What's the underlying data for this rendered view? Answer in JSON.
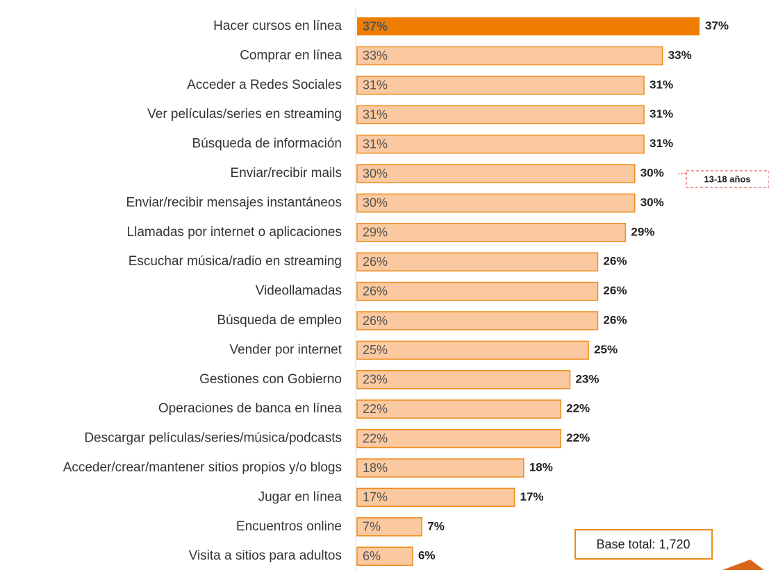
{
  "chart_data": {
    "type": "barh",
    "categories": [
      "Hacer cursos en línea",
      "Comprar en línea",
      "Acceder a Redes Sociales",
      "Ver películas/series en streaming",
      "Búsqueda de información",
      "Enviar/recibir mails",
      "Enviar/recibir mensajes instantáneos",
      "Llamadas por internet o aplicaciones",
      "Escuchar música/radio en streaming",
      "Videollamadas",
      "Búsqueda de empleo",
      "Vender por internet",
      "Gestiones con Gobierno",
      "Operaciones de banca en línea",
      "Descargar películas/series/música/podcasts",
      "Acceder/crear/mantener sitios propios y/o blogs",
      "Jugar en línea",
      "Encuentros online",
      "Visita a sitios para adultos"
    ],
    "values": [
      37,
      33,
      31,
      31,
      31,
      30,
      30,
      29,
      26,
      26,
      26,
      25,
      23,
      22,
      22,
      18,
      17,
      7,
      6
    ],
    "value_labels": [
      "37%",
      "33%",
      "31%",
      "31%",
      "31%",
      "30%",
      "30%",
      "29%",
      "26%",
      "26%",
      "26%",
      "25%",
      "23%",
      "22%",
      "22%",
      "18%",
      "17%",
      "7%",
      "6%"
    ],
    "colors": [
      "#ee7d00",
      "#fbc9a0",
      "#fbc9a0",
      "#fbc9a0",
      "#fbc9a0",
      "#fbc9a0",
      "#fbc9a0",
      "#fbc9a0",
      "#fbc9a0",
      "#fbc9a0",
      "#fbc9a0",
      "#fbc9a0",
      "#fbc9a0",
      "#fbc9a0",
      "#fbc9a0",
      "#fbc9a0",
      "#fbc9a0",
      "#fbc9a0",
      "#fbc9a0"
    ],
    "edge_color": "#ee8a1a",
    "callout": "13-18 años",
    "base_note": "Base total: 1,720"
  }
}
